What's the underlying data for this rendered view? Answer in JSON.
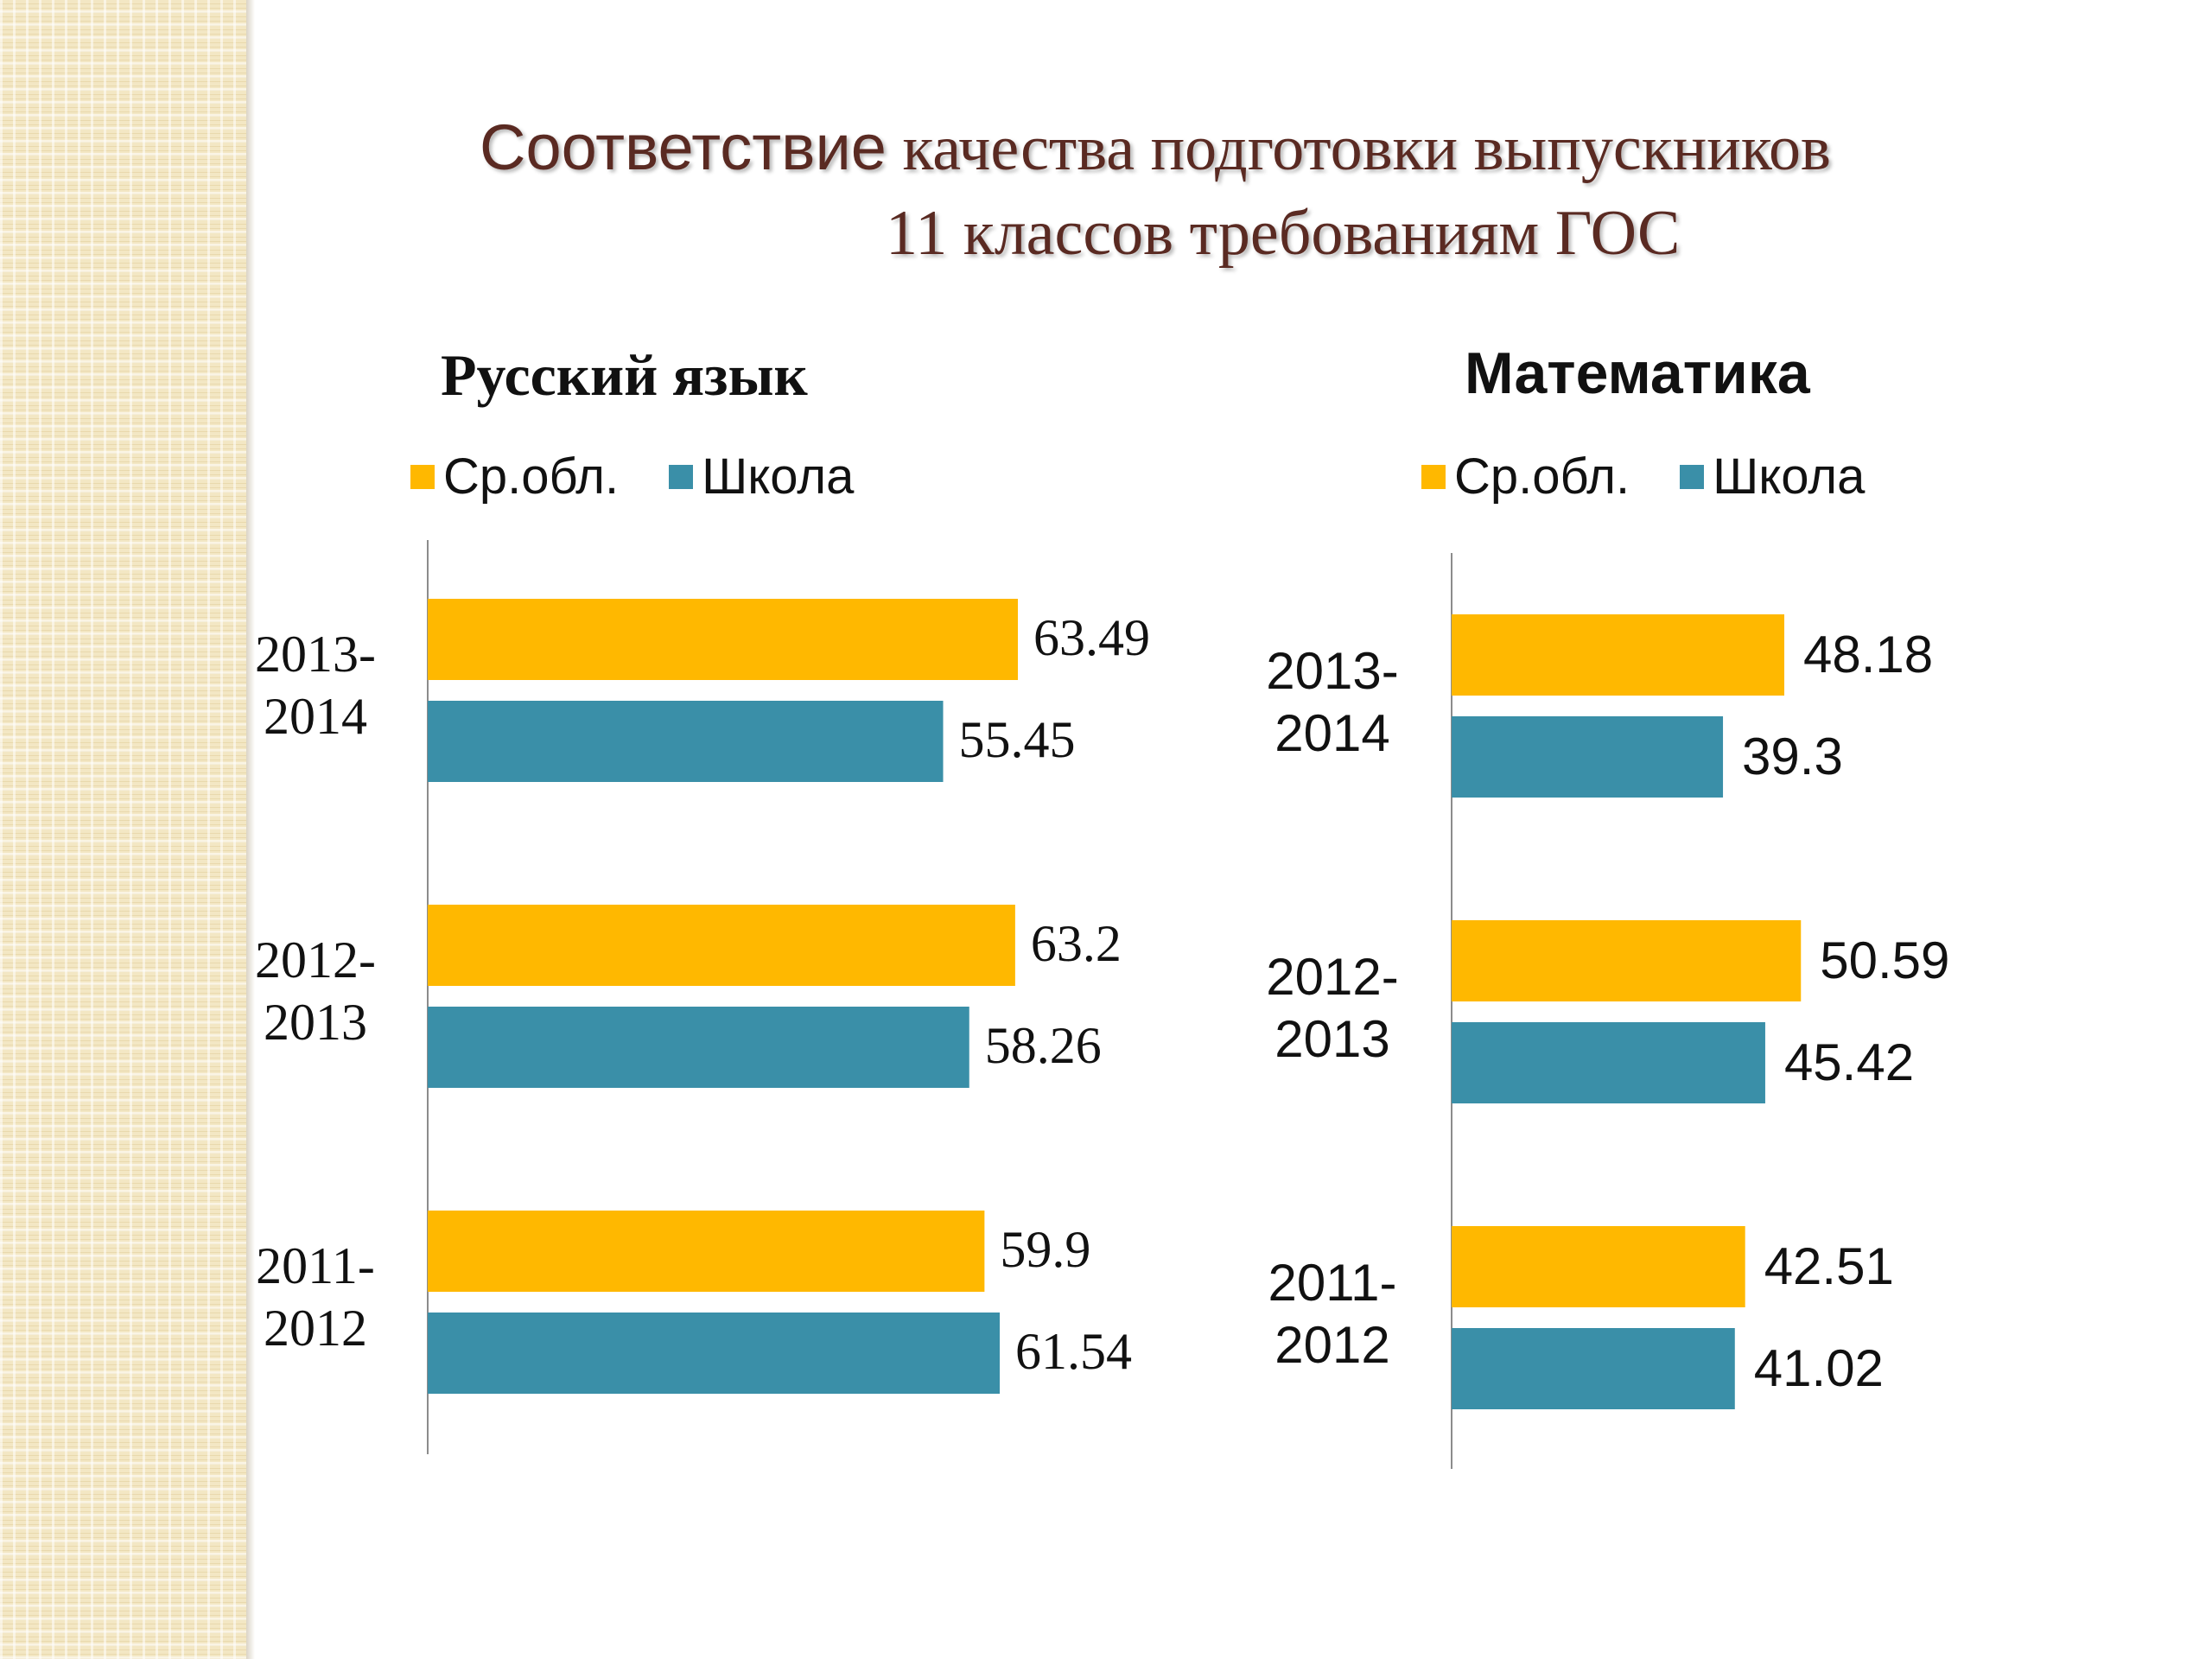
{
  "slide": {
    "title_line1_part1": "Соответствие",
    "title_line1_part2": " качества подготовки выпускников",
    "title_line2": "11 классов требованиям ГОС"
  },
  "colors": {
    "region": "#FFB800",
    "school": "#3A8FA8",
    "axis": "#8c8c8c"
  },
  "chart_data": [
    {
      "type": "bar",
      "orientation": "horizontal",
      "title": "Русский язык",
      "categories": [
        "2013-2014",
        "2012-2013",
        "2011-2012"
      ],
      "series": [
        {
          "name": "Ср.обл.",
          "values": [
            63.49,
            63.2,
            59.9
          ],
          "labels": [
            "63.49",
            "63.2",
            "59.9"
          ]
        },
        {
          "name": "Школа",
          "values": [
            55.45,
            58.26,
            61.54
          ],
          "labels": [
            "55.45",
            "58.26",
            "61.54"
          ]
        }
      ],
      "legend_position": "top",
      "grid": false
    },
    {
      "type": "bar",
      "orientation": "horizontal",
      "title": "Математика",
      "categories": [
        "2013-2014",
        "2012-2013",
        "2011-2012"
      ],
      "series": [
        {
          "name": "Ср.обл.",
          "values": [
            48.18,
            50.59,
            42.51
          ],
          "labels": [
            "48.18",
            "50.59",
            "42.51"
          ]
        },
        {
          "name": "Школа",
          "values": [
            39.3,
            45.42,
            41.02
          ],
          "labels": [
            "39.3",
            "45.42",
            "41.02"
          ]
        }
      ],
      "legend_position": "top",
      "grid": false
    }
  ]
}
